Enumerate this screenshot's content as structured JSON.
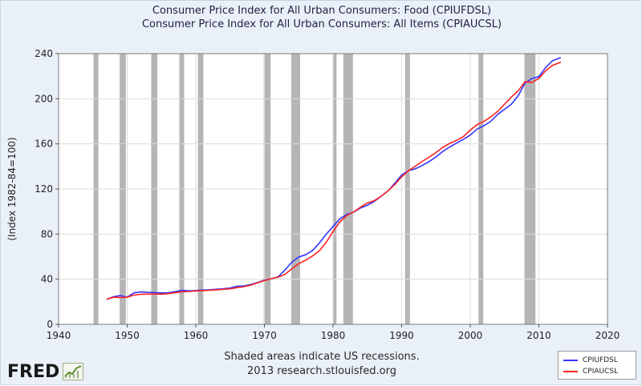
{
  "titles": {
    "line1": "Consumer Price Index for All Urban Consumers: Food (CPIUFDSL)",
    "line2": "Consumer Price Index for All Urban Consumers: All Items (CPIAUCSL)"
  },
  "footer": {
    "note_line1": "Shaded areas indicate US recessions.",
    "note_line2": "2013 research.stlouisfed.org",
    "logo_text": "FRED"
  },
  "colors": {
    "food": "#3333ff",
    "all_items": "#ff2222",
    "recession": "#b5b5b5",
    "plot_background": "#ffffff",
    "frame_background": "#eaf0f8",
    "grid": "#dcdcdc"
  },
  "chart_data": {
    "type": "line",
    "ylabel": "(Index 1982-84=100)",
    "xlabel": "",
    "xlim": [
      1940,
      2020
    ],
    "ylim": [
      0,
      240
    ],
    "xticks": [
      1940,
      1950,
      1960,
      1970,
      1980,
      1990,
      2000,
      2010,
      2020
    ],
    "yticks": [
      0,
      40,
      80,
      120,
      160,
      200,
      240
    ],
    "grid": true,
    "legend_position": "bottom-right",
    "recessions": [
      [
        1945.1,
        1945.8
      ],
      [
        1948.9,
        1949.8
      ],
      [
        1953.5,
        1954.4
      ],
      [
        1957.6,
        1958.3
      ],
      [
        1960.3,
        1961.1
      ],
      [
        1969.9,
        1970.9
      ],
      [
        1973.9,
        1975.2
      ],
      [
        1980.0,
        1980.5
      ],
      [
        1981.5,
        1982.9
      ],
      [
        1990.5,
        1991.2
      ],
      [
        2001.2,
        2001.9
      ],
      [
        2007.9,
        2009.5
      ]
    ],
    "series": [
      {
        "name": "CPIUFDSL",
        "color_key": "food",
        "x": [
          1947,
          1948,
          1949,
          1950,
          1951,
          1952,
          1953,
          1954,
          1955,
          1956,
          1957,
          1958,
          1959,
          1960,
          1961,
          1962,
          1963,
          1964,
          1965,
          1966,
          1967,
          1968,
          1969,
          1970,
          1971,
          1972,
          1973,
          1974,
          1975,
          1976,
          1977,
          1978,
          1979,
          1980,
          1981,
          1982,
          1983,
          1984,
          1985,
          1986,
          1987,
          1988,
          1989,
          1990,
          1991,
          1992,
          1993,
          1994,
          1995,
          1996,
          1997,
          1998,
          1999,
          2000,
          2001,
          2002,
          2003,
          2004,
          2005,
          2006,
          2007,
          2008,
          2009,
          2010,
          2011,
          2012,
          2013.2
        ],
        "values": [
          22.0,
          24.5,
          25.5,
          24.0,
          28.0,
          28.7,
          28.3,
          28.2,
          27.8,
          28.0,
          29.0,
          30.2,
          29.7,
          30.0,
          30.4,
          30.6,
          31.1,
          31.5,
          32.2,
          33.8,
          34.1,
          35.3,
          37.1,
          39.2,
          40.4,
          42.1,
          48.2,
          55.1,
          59.8,
          61.6,
          65.5,
          72.0,
          79.9,
          86.8,
          93.6,
          97.4,
          99.4,
          103.2,
          105.6,
          109.0,
          113.5,
          118.2,
          125.1,
          132.4,
          136.3,
          137.9,
          140.9,
          144.3,
          148.4,
          153.3,
          157.3,
          160.7,
          164.1,
          167.8,
          173.1,
          176.2,
          180.0,
          186.2,
          190.7,
          195.2,
          202.9,
          214.1,
          218.0,
          219.6,
          227.8,
          233.8,
          236.5
        ]
      },
      {
        "name": "CPIAUCSL",
        "color_key": "all_items",
        "x": [
          1947,
          1948,
          1949,
          1950,
          1951,
          1952,
          1953,
          1954,
          1955,
          1956,
          1957,
          1958,
          1959,
          1960,
          1961,
          1962,
          1963,
          1964,
          1965,
          1966,
          1967,
          1968,
          1969,
          1970,
          1971,
          1972,
          1973,
          1974,
          1975,
          1976,
          1977,
          1978,
          1979,
          1980,
          1981,
          1982,
          1983,
          1984,
          1985,
          1986,
          1987,
          1988,
          1989,
          1990,
          1991,
          1992,
          1993,
          1994,
          1995,
          1996,
          1997,
          1998,
          1999,
          2000,
          2001,
          2002,
          2003,
          2004,
          2005,
          2006,
          2007,
          2008,
          2009,
          2010,
          2011,
          2012,
          2013.2
        ],
        "values": [
          22.3,
          24.0,
          23.8,
          24.1,
          26.0,
          26.6,
          26.8,
          26.9,
          26.8,
          27.2,
          28.1,
          28.9,
          29.1,
          29.6,
          29.9,
          30.2,
          30.6,
          31.0,
          31.5,
          32.5,
          33.4,
          34.8,
          36.7,
          38.8,
          40.5,
          41.8,
          44.4,
          49.3,
          53.8,
          56.9,
          60.6,
          65.2,
          72.6,
          82.4,
          90.9,
          96.5,
          99.6,
          103.9,
          107.6,
          109.6,
          113.6,
          118.3,
          124.0,
          130.7,
          136.2,
          140.3,
          144.5,
          148.2,
          152.4,
          156.9,
          160.5,
          163.0,
          166.6,
          172.2,
          177.1,
          179.9,
          184.0,
          188.9,
          195.3,
          201.6,
          207.3,
          215.3,
          214.5,
          218.1,
          224.9,
          229.6,
          232.5
        ]
      }
    ]
  }
}
